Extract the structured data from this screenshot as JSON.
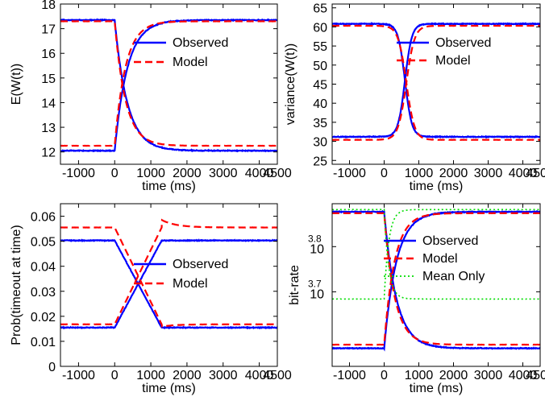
{
  "chart_data": [
    {
      "type": "line",
      "xlabel": "time (ms)",
      "ylabel": "E(W(t))",
      "xlim": [
        -1500,
        4500
      ],
      "ylim": [
        11.5,
        18
      ],
      "xticks": [
        -1000,
        0,
        1000,
        2000,
        3000,
        4000,
        4500
      ],
      "xtick_labels": [
        "-1000",
        "0",
        "1000",
        "2000",
        "3000",
        "4000",
        "4500"
      ],
      "yticks": [
        12,
        13,
        14,
        15,
        16,
        17,
        18
      ],
      "ytick_labels": [
        "12",
        "13",
        "14",
        "15",
        "16",
        "17",
        "18"
      ],
      "grid": false,
      "legend_position": "center-right",
      "series": [
        {
          "name": "Observed",
          "color": "#0000ff",
          "style": "solid",
          "low": 12.05,
          "high": 17.35,
          "curve": "exp",
          "tau": 350
        },
        {
          "name": "Model",
          "color": "#ff0000",
          "style": "dashed",
          "low": 12.25,
          "high": 17.3,
          "curve": "exp",
          "tau": 300
        }
      ]
    },
    {
      "type": "line",
      "xlabel": "time (ms)",
      "ylabel": "variance(W(t))",
      "xlim": [
        -1500,
        4500
      ],
      "ylim": [
        24,
        66
      ],
      "xticks": [
        -1000,
        0,
        1000,
        2000,
        3000,
        4000,
        4500
      ],
      "xtick_labels": [
        "-1000",
        "0",
        "1000",
        "2000",
        "3000",
        "4000",
        "4500"
      ],
      "yticks": [
        25,
        30,
        35,
        40,
        45,
        50,
        55,
        60,
        65
      ],
      "ytick_labels": [
        "25",
        "30",
        "35",
        "40",
        "45",
        "50",
        "55",
        "60",
        "65"
      ],
      "grid": false,
      "legend_position": "top-right",
      "series": [
        {
          "name": "Observed",
          "color": "#0000ff",
          "style": "solid",
          "low": 31.2,
          "high": 60.8,
          "curve": "sigmoid",
          "center": 600,
          "width": 220
        },
        {
          "name": "Model",
          "color": "#ff0000",
          "style": "dashed",
          "low": 30.4,
          "high": 60.3,
          "curve": "sigmoid",
          "center": 640,
          "width": 260
        }
      ]
    },
    {
      "type": "line",
      "xlabel": "time (ms)",
      "ylabel": "Prob(timeout at time)",
      "xlim": [
        -1500,
        4500
      ],
      "ylim": [
        0,
        0.065
      ],
      "xticks": [
        -1000,
        0,
        1000,
        2000,
        3000,
        4000,
        4500
      ],
      "xtick_labels": [
        "-1000",
        "0",
        "1000",
        "2000",
        "3000",
        "4000",
        "4500"
      ],
      "yticks": [
        0,
        0.01,
        0.02,
        0.03,
        0.04,
        0.05,
        0.06
      ],
      "ytick_labels": [
        "0",
        "0.01",
        "0.02",
        "0.03",
        "0.04",
        "0.05",
        "0.06"
      ],
      "grid": false,
      "legend_position": "center-right",
      "series": [
        {
          "name": "Observed",
          "color": "#0000ff",
          "style": "solid",
          "low": 0.0155,
          "high": 0.0503,
          "curve": "ramp",
          "ramp": [
            0,
            1300
          ]
        },
        {
          "name": "Model",
          "color": "#ff0000",
          "style": "dashed",
          "low": 0.0168,
          "high": 0.0555,
          "curve": "ramp",
          "ramp": [
            0,
            1300
          ],
          "overshoot": 0.003
        }
      ]
    },
    {
      "type": "line",
      "xlabel": "time (ms)",
      "ylabel": "bit-rate",
      "xlim": [
        -1500,
        4500
      ],
      "ylim": [
        3.535,
        3.895
      ],
      "yscale": "log10",
      "yticks": [
        3.7,
        3.8
      ],
      "ytick_labels": [
        {
          "base": "10",
          "exp": "3.7"
        },
        {
          "base": "10",
          "exp": "3.8"
        }
      ],
      "xticks": [
        -1000,
        0,
        1000,
        2000,
        3000,
        4000,
        4500
      ],
      "xtick_labels": [
        "-1000",
        "0",
        "1000",
        "2000",
        "3000",
        "4000",
        "4500"
      ],
      "grid": false,
      "legend_position": "top-right",
      "series": [
        {
          "name": "Observed",
          "color": "#0000ff",
          "style": "solid",
          "low": 3.575,
          "high": 3.877,
          "curve": "exp",
          "tau": 350
        },
        {
          "name": "Model",
          "color": "#ff0000",
          "style": "dashed",
          "low": 3.583,
          "high": 3.874,
          "curve": "exp",
          "tau": 300
        },
        {
          "name": "Mean Only",
          "color": "#00dd00",
          "style": "dotted",
          "low": 3.684,
          "high": 3.882,
          "curve": "exp",
          "tau": 130
        }
      ]
    }
  ]
}
